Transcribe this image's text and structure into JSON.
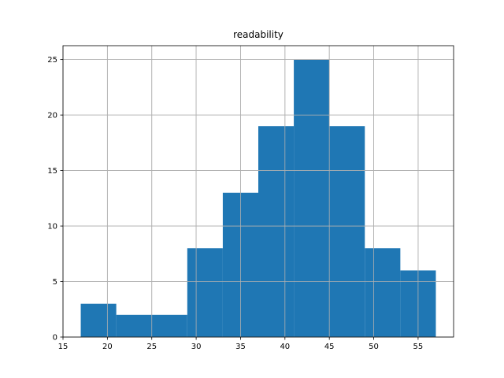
{
  "chart_data": {
    "type": "bar",
    "title": "readability",
    "xlabel": "",
    "ylabel": "",
    "bin_edges": [
      17,
      21,
      25,
      29,
      33,
      37,
      41,
      45,
      49,
      53,
      57
    ],
    "counts": [
      3,
      2,
      2,
      8,
      13,
      19,
      25,
      19,
      8,
      6
    ],
    "xlim": [
      15,
      59
    ],
    "ylim": [
      0,
      26.25
    ],
    "xticks": [
      15,
      20,
      25,
      30,
      35,
      40,
      45,
      50,
      55
    ],
    "yticks": [
      0,
      5,
      10,
      15,
      20,
      25
    ],
    "grid": true,
    "bar_color": "#1f77b4",
    "grid_color": "#b0b0b0"
  }
}
